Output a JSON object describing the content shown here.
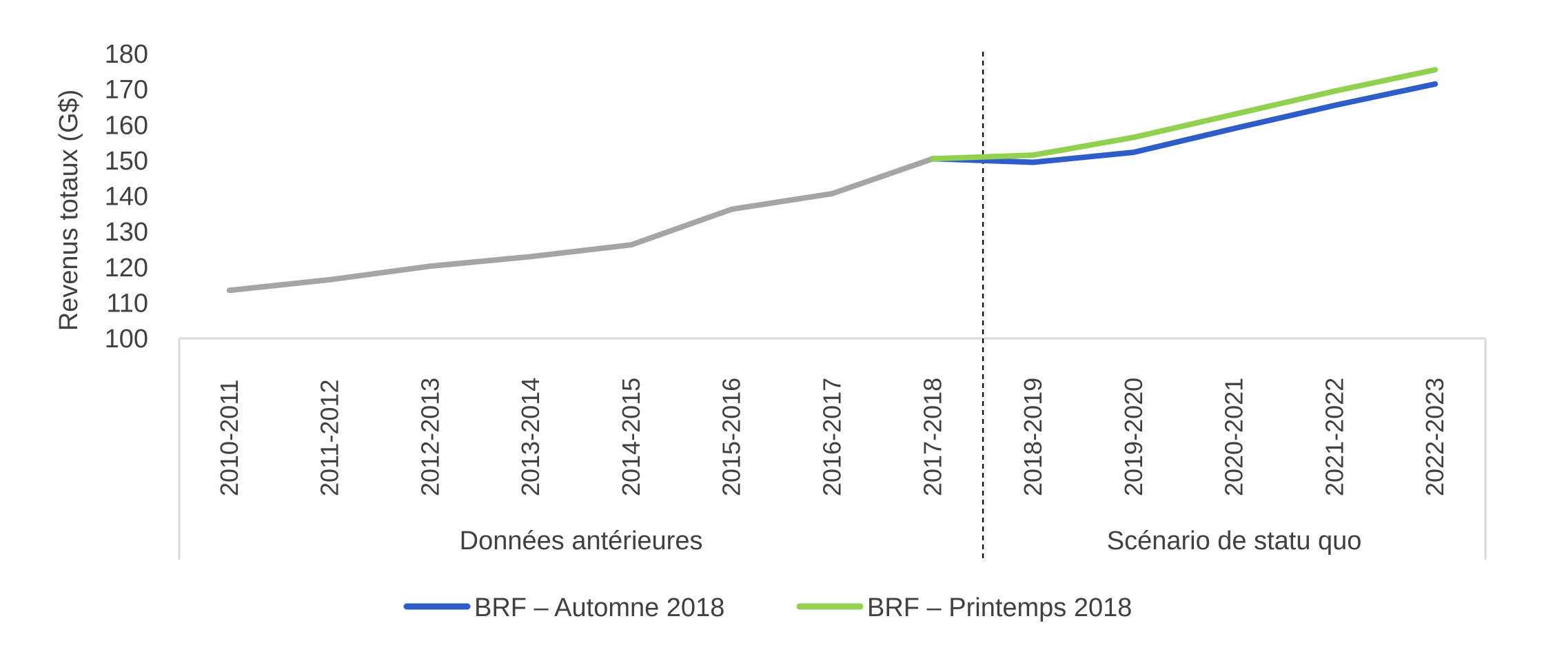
{
  "chart_data": {
    "type": "line",
    "title": "",
    "xlabel": "",
    "ylabel": "Revenus totaux (G$)",
    "ylim": [
      100,
      180
    ],
    "yticks": [
      100,
      110,
      120,
      130,
      140,
      150,
      160,
      170,
      180
    ],
    "categories": [
      "2010-2011",
      "2011-2012",
      "2012-2013",
      "2013-2014",
      "2014-2015",
      "2015-2016",
      "2016-2017",
      "2017-2018",
      "2018-2019",
      "2019-2020",
      "2020-2021",
      "2021-2022",
      "2022-2023"
    ],
    "category_groups": [
      {
        "label": "Données antérieures",
        "categories": [
          "2010-2011",
          "2011-2012",
          "2012-2013",
          "2013-2014",
          "2014-2015",
          "2015-2016",
          "2016-2017",
          "2017-2018"
        ]
      },
      {
        "label": "Scénario de statu quo",
        "categories": [
          "2018-2019",
          "2019-2020",
          "2020-2021",
          "2021-2022",
          "2022-2023"
        ]
      }
    ],
    "grid": false,
    "legend": "bottom",
    "series": [
      {
        "values": [
          113.5,
          116.5,
          120.3,
          123,
          126.3,
          136.3,
          140.7,
          150.5,
          null,
          null,
          null,
          null,
          null
        ],
        "color": "#a5a5a5"
      },
      {
        "name": "BRF – Automne 2018",
        "values": [
          null,
          null,
          null,
          null,
          null,
          null,
          null,
          150.5,
          149.5,
          152.3,
          159,
          165.5,
          171.5
        ],
        "color": "#2e5cc8"
      },
      {
        "name": "BRF – Printemps 2018",
        "values": [
          null,
          null,
          null,
          null,
          null,
          null,
          null,
          150.5,
          151.5,
          156.5,
          163,
          169.5,
          175.5
        ],
        "color": "#92d050"
      }
    ]
  }
}
